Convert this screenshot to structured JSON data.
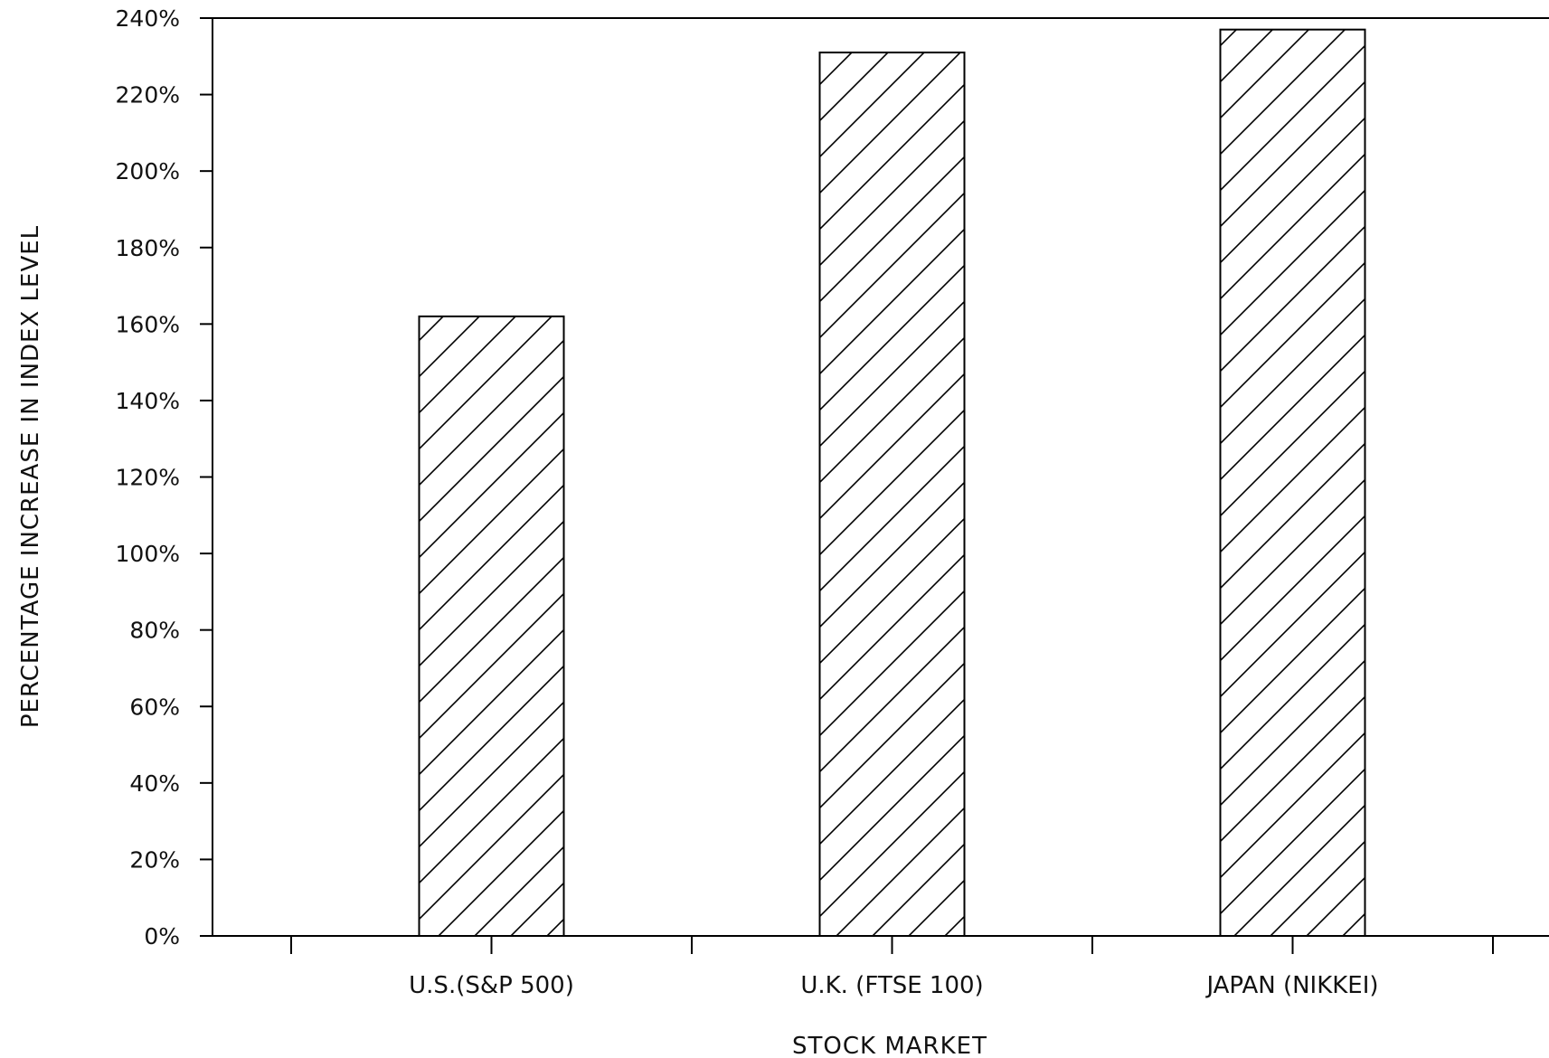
{
  "chart_data": {
    "type": "bar",
    "xlabel": "STOCK MARKET",
    "ylabel": "PERCENTAGE INCREASE IN INDEX LEVEL",
    "categories": [
      "U.S.(S&P 500)",
      "U.K. (FTSE 100)",
      "JAPAN (NIKKEI)"
    ],
    "values": [
      162,
      231,
      237
    ],
    "ylim": [
      0,
      240
    ],
    "yticks": [
      "0%",
      "20%",
      "40%",
      "60%",
      "80%",
      "100%",
      "120%",
      "140%",
      "160%",
      "180%",
      "200%",
      "220%",
      "240%"
    ],
    "grid": false,
    "bar_pattern": "diagonal-hatch",
    "colors": {
      "bar_fill": "#ffffff",
      "stroke": "#000000"
    }
  }
}
